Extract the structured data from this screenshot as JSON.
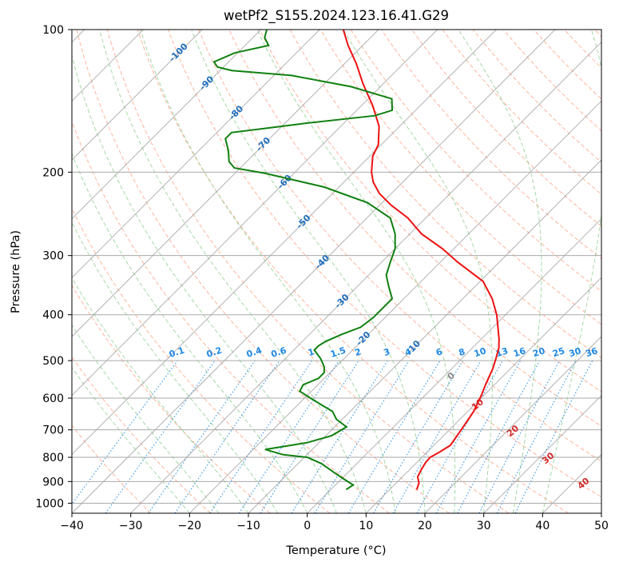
{
  "chart_data": {
    "type": "skew-t log-p",
    "title": "wetPf2_S155.2024.123.16.41.G29",
    "xlabel": "Temperature (°C)",
    "ylabel": "Pressure (hPa)",
    "xlim": [
      -40,
      50
    ],
    "ylim": [
      1050,
      100
    ],
    "x_scale": "skewed-linear",
    "y_scale": "log",
    "grid": true,
    "x_ticks": [
      "−40",
      "−30",
      "−20",
      "−10",
      "0",
      "10",
      "20",
      "30",
      "40",
      "50"
    ],
    "y_ticks": [
      "100",
      "200",
      "300",
      "400",
      "500",
      "600",
      "700",
      "800",
      "900",
      "1000"
    ],
    "colors": {
      "temperature": "#ee1111",
      "dewpoint": "#108010",
      "dry_adiabats": "#ff9b7a",
      "moist_adiabats": "#8fce8f",
      "mixing_ratio": "#1e88e5",
      "isotherms": "#999999",
      "isobars": "#aaaaaa",
      "adiabat_label_blue": "#1e6ebd",
      "adiabat_label_red": "#d22828",
      "zero_label": "#888888"
    },
    "series": [
      {
        "key": "temperature",
        "points": [
          [
            936,
            14.6
          ],
          [
            905,
            13.8
          ],
          [
            880,
            12.6
          ],
          [
            850,
            12.0
          ],
          [
            820,
            11.5
          ],
          [
            800,
            11.4
          ],
          [
            780,
            12.1
          ],
          [
            755,
            12.8
          ],
          [
            700,
            12.0
          ],
          [
            640,
            11.0
          ],
          [
            590,
            9.5
          ],
          [
            560,
            8.4
          ],
          [
            520,
            7.0
          ],
          [
            495,
            5.8
          ],
          [
            470,
            4.5
          ],
          [
            450,
            3.0
          ],
          [
            400,
            -1.5
          ],
          [
            370,
            -5.0
          ],
          [
            340,
            -9.5
          ],
          [
            310,
            -17.0
          ],
          [
            290,
            -22.0
          ],
          [
            270,
            -28.0
          ],
          [
            250,
            -33.0
          ],
          [
            235,
            -38.0
          ],
          [
            222,
            -42.0
          ],
          [
            210,
            -45.0
          ],
          [
            200,
            -47.0
          ],
          [
            185,
            -49.5
          ],
          [
            175,
            -50.5
          ],
          [
            160,
            -53.5
          ],
          [
            145,
            -58.0
          ],
          [
            130,
            -63.5
          ],
          [
            118,
            -68.0
          ],
          [
            108,
            -72.5
          ],
          [
            100,
            -76.0
          ]
        ]
      },
      {
        "key": "dewpoint",
        "points": [
          [
            936,
            2.6
          ],
          [
            915,
            3.0
          ],
          [
            890,
            0.5
          ],
          [
            860,
            -2.5
          ],
          [
            825,
            -6.0
          ],
          [
            800,
            -9.5
          ],
          [
            790,
            -14.0
          ],
          [
            770,
            -18.0
          ],
          [
            760,
            -15.5
          ],
          [
            745,
            -12.0
          ],
          [
            720,
            -9.0
          ],
          [
            690,
            -8.0
          ],
          [
            665,
            -11.0
          ],
          [
            640,
            -13.0
          ],
          [
            620,
            -16.0
          ],
          [
            600,
            -19.0
          ],
          [
            580,
            -22.0
          ],
          [
            562,
            -22.5
          ],
          [
            545,
            -21.0
          ],
          [
            530,
            -21.0
          ],
          [
            515,
            -22.0
          ],
          [
            495,
            -24.0
          ],
          [
            475,
            -26.5
          ],
          [
            465,
            -26.5
          ],
          [
            455,
            -26.0
          ],
          [
            440,
            -24.5
          ],
          [
            425,
            -22.5
          ],
          [
            405,
            -22.0
          ],
          [
            390,
            -22.0
          ],
          [
            370,
            -22.0
          ],
          [
            350,
            -24.5
          ],
          [
            330,
            -27.0
          ],
          [
            310,
            -28.5
          ],
          [
            290,
            -30.0
          ],
          [
            270,
            -32.5
          ],
          [
            250,
            -36.0
          ],
          [
            232,
            -42.5
          ],
          [
            215,
            -52.5
          ],
          [
            201,
            -65.0
          ],
          [
            196,
            -71.0
          ],
          [
            190,
            -73.0
          ],
          [
            180,
            -75.0
          ],
          [
            170,
            -77.5
          ],
          [
            165,
            -77.5
          ],
          [
            162,
            -73.0
          ],
          [
            158,
            -67.0
          ],
          [
            152,
            -56.0
          ],
          [
            148,
            -54.0
          ],
          [
            140,
            -56.0
          ],
          [
            132,
            -65.0
          ],
          [
            125,
            -77.0
          ],
          [
            122,
            -88.0
          ],
          [
            120,
            -91.0
          ],
          [
            117,
            -92.5
          ],
          [
            112,
            -90.5
          ],
          [
            108,
            -86.0
          ],
          [
            104,
            -88.0
          ],
          [
            100,
            -89.0
          ]
        ]
      }
    ],
    "moist_adiabat_labels": [
      "-100",
      "-90",
      "-80",
      "-70",
      "-60",
      "-50",
      "-40",
      "-30",
      "-20",
      "-10"
    ],
    "dry_adiabat_labels": [
      "0",
      "10",
      "20",
      "30",
      "40"
    ],
    "mixing_ratio_labels": [
      "0.1",
      "0.2",
      "0.4",
      "0.6",
      "1",
      "1.5",
      "2",
      "3",
      "4",
      "6",
      "8",
      "10",
      "13",
      "16",
      "20",
      "25",
      "30",
      "36"
    ]
  }
}
